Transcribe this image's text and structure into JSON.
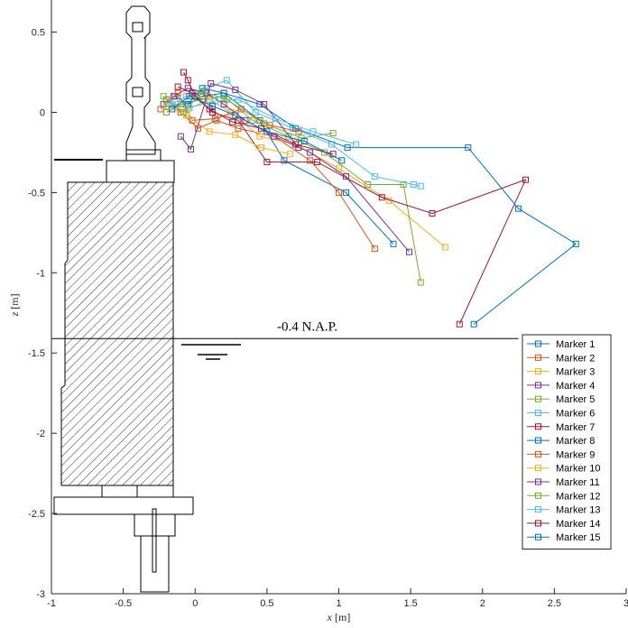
{
  "chart_data": {
    "type": "line",
    "xlabel": "x [m]",
    "ylabel": "z [m]",
    "xlim": [
      -1,
      3
    ],
    "ylim": [
      -3,
      0.7
    ],
    "x_ticks": [
      -1,
      -0.5,
      0,
      0.5,
      1,
      1.5,
      2,
      2.5,
      3
    ],
    "x_tick_labels": [
      "-1",
      "-0.5",
      "0",
      "0.5",
      "1",
      "1.5",
      "2",
      "2.5",
      "3"
    ],
    "y_ticks": [
      0.5,
      0,
      -0.5,
      -1,
      -1.5,
      -2,
      -2.5,
      -3
    ],
    "y_tick_labels": [
      "0.5",
      "0",
      "-0.5",
      "-1",
      "-1.5",
      "-2",
      "-2.5",
      "-3"
    ],
    "grid": false,
    "legend_position": "bottom-right",
    "marker": "square",
    "annotations": [
      {
        "text": "-0.4 N.A.P.",
        "x": 0.57,
        "y": -1.36
      }
    ],
    "reference_lines": [
      {
        "type": "horizontal",
        "y": -1.41,
        "label": "-0.4 N.A.P."
      }
    ],
    "series": [
      {
        "name": "Marker 1",
        "color": "#0072BD",
        "x": [
          -0.22,
          -0.14,
          -0.05,
          0.05,
          0.2,
          0.45,
          0.62,
          1.05,
          1.38
        ],
        "y": [
          0.05,
          0.1,
          0.05,
          0.1,
          0.12,
          -0.05,
          -0.3,
          -0.5,
          -0.82
        ]
      },
      {
        "name": "Marker 2",
        "color": "#D95319",
        "x": [
          -0.2,
          -0.1,
          0.02,
          0.15,
          0.3,
          0.55,
          0.8,
          1.0,
          1.25
        ],
        "y": [
          0.08,
          0.0,
          -0.1,
          -0.05,
          -0.1,
          -0.15,
          -0.3,
          -0.5,
          -0.85
        ]
      },
      {
        "name": "Marker 3",
        "color": "#EDB120",
        "x": [
          -0.18,
          -0.05,
          0.1,
          0.25,
          0.45,
          0.7,
          1.0,
          1.35,
          1.74
        ],
        "y": [
          0.06,
          0.02,
          0.08,
          0.0,
          -0.15,
          -0.2,
          -0.35,
          -0.55,
          -0.84
        ]
      },
      {
        "name": "Marker 4",
        "color": "#7E2F8E",
        "x": [
          -0.15,
          -0.05,
          0.08,
          0.2,
          0.35,
          0.55,
          0.8,
          1.05,
          1.49
        ],
        "y": [
          0.1,
          0.15,
          0.12,
          0.05,
          -0.05,
          -0.15,
          -0.25,
          -0.4,
          -0.87
        ]
      },
      {
        "name": "Marker 5",
        "color": "#77AC30",
        "x": [
          -0.2,
          -0.1,
          0.05,
          0.2,
          0.4,
          0.65,
          0.9,
          1.2,
          1.45,
          1.57
        ],
        "y": [
          0.0,
          0.05,
          0.08,
          0.1,
          -0.05,
          -0.15,
          -0.25,
          -0.45,
          -0.45,
          -1.06
        ]
      },
      {
        "name": "Marker 6",
        "color": "#4DBEEE",
        "x": [
          -0.16,
          -0.06,
          0.08,
          0.22,
          0.42,
          0.68,
          0.95,
          1.25,
          1.52,
          1.57
        ],
        "y": [
          0.05,
          0.1,
          0.15,
          0.2,
          0.0,
          -0.1,
          -0.2,
          -0.4,
          -0.45,
          -0.46
        ]
      },
      {
        "name": "Marker 7",
        "color": "#A2142F",
        "x": [
          -0.08,
          -0.05,
          0.0,
          0.12,
          0.3,
          0.5,
          0.85,
          1.3,
          1.65,
          2.3,
          1.84
        ],
        "y": [
          0.25,
          0.2,
          0.1,
          0.0,
          -0.05,
          -0.31,
          -0.31,
          -0.53,
          -0.63,
          -0.42,
          -1.32
        ]
      },
      {
        "name": "Marker 8",
        "color": "#0072BD",
        "x": [
          -0.05,
          0.05,
          0.2,
          0.45,
          0.7,
          1.06,
          1.9,
          2.25,
          2.65,
          1.94
        ],
        "y": [
          0.05,
          0.15,
          0.12,
          0.05,
          -0.1,
          -0.22,
          -0.22,
          -0.6,
          -0.82,
          -1.32
        ]
      },
      {
        "name": "Marker 9",
        "color": "#D95319",
        "x": [
          -0.24,
          -0.12,
          -0.02,
          0.14,
          0.32,
          0.52,
          0.72
        ],
        "y": [
          0.02,
          0.12,
          -0.05,
          -0.04,
          0.02,
          -0.08,
          -0.12
        ]
      },
      {
        "name": "Marker 10",
        "color": "#EDB120",
        "x": [
          -0.2,
          -0.06,
          0.1,
          0.28,
          0.46,
          0.66
        ],
        "y": [
          0.04,
          -0.02,
          -0.12,
          -0.14,
          -0.22,
          -0.26
        ]
      },
      {
        "name": "Marker 11",
        "color": "#7E2F8E",
        "x": [
          -0.1,
          -0.03,
          0.11,
          0.28,
          0.48,
          0.72
        ],
        "y": [
          -0.15,
          -0.23,
          0.18,
          0.14,
          0.05,
          -0.22
        ]
      },
      {
        "name": "Marker 12",
        "color": "#77AC30",
        "x": [
          -0.22,
          -0.08,
          0.05,
          0.22,
          0.48,
          0.74,
          0.96
        ],
        "y": [
          0.1,
          0.0,
          0.13,
          0.08,
          -0.07,
          -0.16,
          -0.13
        ]
      },
      {
        "name": "Marker 13",
        "color": "#4DBEEE",
        "x": [
          -0.18,
          -0.04,
          0.14,
          0.3,
          0.56,
          0.82,
          1.12
        ],
        "y": [
          0.06,
          0.03,
          0.07,
          0.08,
          -0.04,
          -0.12,
          -0.2
        ]
      },
      {
        "name": "Marker 14",
        "color": "#A2142F",
        "x": [
          -0.12,
          -0.02,
          0.1,
          0.26,
          0.46,
          0.7,
          0.96
        ],
        "y": [
          0.16,
          0.12,
          0.02,
          -0.06,
          -0.1,
          -0.2,
          -0.26
        ]
      },
      {
        "name": "Marker 15",
        "color": "#0072BD",
        "x": [
          -0.16,
          -0.04,
          0.12,
          0.28,
          0.5,
          0.76,
          1.02
        ],
        "y": [
          0.02,
          0.1,
          0.04,
          -0.02,
          -0.12,
          -0.18,
          -0.3
        ]
      }
    ]
  }
}
